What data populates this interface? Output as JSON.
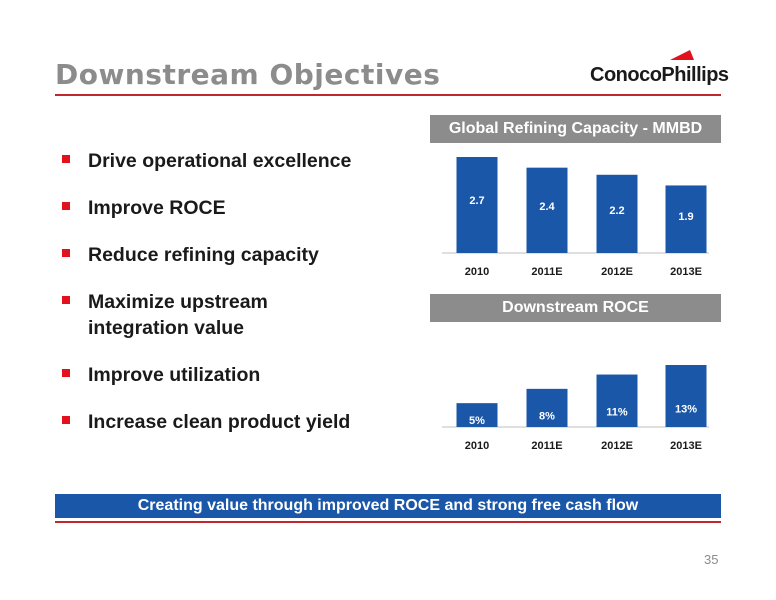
{
  "slide": {
    "title": "Downstream Objectives",
    "company": "ConocoPhillips",
    "page_number": "35",
    "footer_text": "Creating value through improved ROCE and strong free cash flow",
    "colors": {
      "accent": "#c0282e",
      "bar": "#1a57a8",
      "header_gray": "#8c8c8c",
      "bullet": "#e3101e"
    }
  },
  "bullets": [
    {
      "line1": "Drive operational excellence",
      "line2": ""
    },
    {
      "line1": "Improve ROCE",
      "line2": ""
    },
    {
      "line1": "Reduce refining capacity",
      "line2": ""
    },
    {
      "line1": "Maximize upstream",
      "line2": "integration value"
    },
    {
      "line1": "Improve utilization",
      "line2": ""
    },
    {
      "line1": "Increase clean product yield",
      "line2": ""
    }
  ],
  "chart_data": [
    {
      "type": "bar",
      "title": "Global Refining Capacity - MMBD",
      "categories": [
        "2010",
        "2011E",
        "2012E",
        "2013E"
      ],
      "values": [
        2.7,
        2.4,
        2.2,
        1.9
      ],
      "labels": [
        "2.7",
        "2.4",
        "2.2",
        "1.9"
      ],
      "ylim": [
        0,
        2.7
      ],
      "grid": false,
      "legend": "none"
    },
    {
      "type": "bar",
      "title": "Downstream ROCE",
      "categories": [
        "2010",
        "2011E",
        "2012E",
        "2013E"
      ],
      "values": [
        5,
        8,
        11,
        13
      ],
      "labels": [
        "5%",
        "8%",
        "11%",
        "13%"
      ],
      "ylim": [
        0,
        13
      ],
      "grid": false,
      "legend": "none"
    }
  ]
}
